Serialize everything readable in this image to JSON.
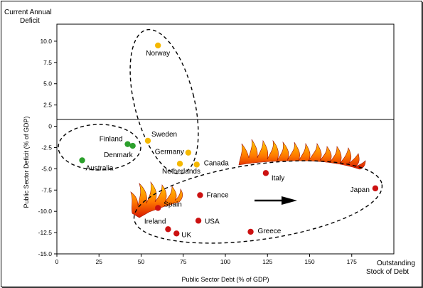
{
  "chart_data": {
    "type": "scatter",
    "title": "",
    "xlabel": "Public Sector Debt (% of GDP)",
    "ylabel": "Public Sector Deficit (% of GDP)",
    "x_axis_end_label": "Outstanding Stock of Debt",
    "y_axis_top_label": "Current Annual Deficit",
    "xlim": [
      0,
      200
    ],
    "ylim": [
      -15,
      12
    ],
    "xticks": [
      0,
      25,
      50,
      75,
      100,
      125,
      150,
      175
    ],
    "yticks": [
      10.0,
      7.5,
      5.0,
      2.5,
      0,
      -2.5,
      -5.0,
      -7.5,
      -10.0,
      -12.5,
      -15.0
    ],
    "ytick_labels": [
      "10.0",
      "7.5",
      "5.0",
      "2.5",
      "0",
      "-2.5",
      "-5.0",
      "-7.5",
      "-10.0",
      "-12.5",
      "-15.0"
    ],
    "grid": false,
    "legend": "none",
    "groups": [
      {
        "color": "#2ca02c",
        "points": [
          {
            "label": "Finland",
            "x": 42,
            "y": -2.1
          },
          {
            "label": "Denmark",
            "x": 45,
            "y": -2.3
          },
          {
            "label": "Australia",
            "x": 15,
            "y": -4.0
          }
        ]
      },
      {
        "color": "#f5b800",
        "points": [
          {
            "label": "Norway",
            "x": 60,
            "y": 9.5
          },
          {
            "label": "Sweden",
            "x": 54,
            "y": -1.7
          },
          {
            "label": "Germany",
            "x": 78,
            "y": -3.1
          },
          {
            "label": "Netherlands",
            "x": 73,
            "y": -4.4
          },
          {
            "label": "Canada",
            "x": 83,
            "y": -4.5
          }
        ]
      },
      {
        "color": "#cc1111",
        "points": [
          {
            "label": "Italy",
            "x": 124,
            "y": -5.5
          },
          {
            "label": "Japan",
            "x": 189,
            "y": -7.3
          },
          {
            "label": "France",
            "x": 85,
            "y": -8.1
          },
          {
            "label": "Spain",
            "x": 60,
            "y": -9.6
          },
          {
            "label": "USA",
            "x": 84,
            "y": -11.1
          },
          {
            "label": "Ireland",
            "x": 66,
            "y": -12.1
          },
          {
            "label": "UK",
            "x": 71,
            "y": -12.6
          },
          {
            "label": "Greece",
            "x": 115,
            "y": -12.4
          }
        ]
      }
    ]
  }
}
